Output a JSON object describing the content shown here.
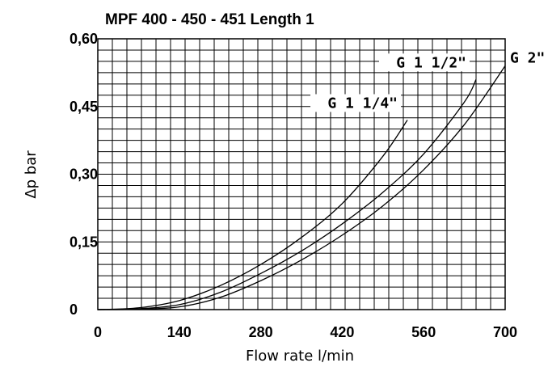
{
  "chart_data": {
    "type": "line",
    "title": "MPF 400 - 450 - 451 Length 1",
    "xlabel": "Flow rate l/min",
    "ylabel": "Δp bar",
    "xlim": [
      0,
      700
    ],
    "ylim": [
      0,
      0.6
    ],
    "x_ticks": [
      0,
      140,
      280,
      420,
      560,
      700
    ],
    "x_tick_labels": [
      "0",
      "140",
      "280",
      "420",
      "560",
      "700"
    ],
    "y_ticks": [
      0,
      0.15,
      0.3,
      0.45,
      0.6
    ],
    "y_tick_labels": [
      "0",
      "0,15",
      "0,30",
      "0,45",
      "0,60"
    ],
    "grid": true,
    "grid_divisions": {
      "x": 28,
      "y": 24
    },
    "series": [
      {
        "name": "G 1 1/4\"",
        "x": [
          0,
          70,
          140,
          210,
          280,
          350,
          420,
          490,
          532
        ],
        "y": [
          0,
          0.004,
          0.02,
          0.053,
          0.1,
          0.16,
          0.235,
          0.34,
          0.42
        ]
      },
      {
        "name": "G 1 1/2\"",
        "x": [
          0,
          70,
          140,
          210,
          280,
          350,
          420,
          490,
          560,
          630,
          650
        ],
        "y": [
          0,
          0.002,
          0.011,
          0.038,
          0.08,
          0.13,
          0.19,
          0.26,
          0.345,
          0.46,
          0.51
        ]
      },
      {
        "name": "G 2\"",
        "x": [
          0,
          70,
          140,
          210,
          280,
          350,
          420,
          490,
          560,
          630,
          700
        ],
        "y": [
          0,
          0.001,
          0.006,
          0.027,
          0.064,
          0.11,
          0.165,
          0.23,
          0.31,
          0.41,
          0.54
        ]
      }
    ]
  }
}
